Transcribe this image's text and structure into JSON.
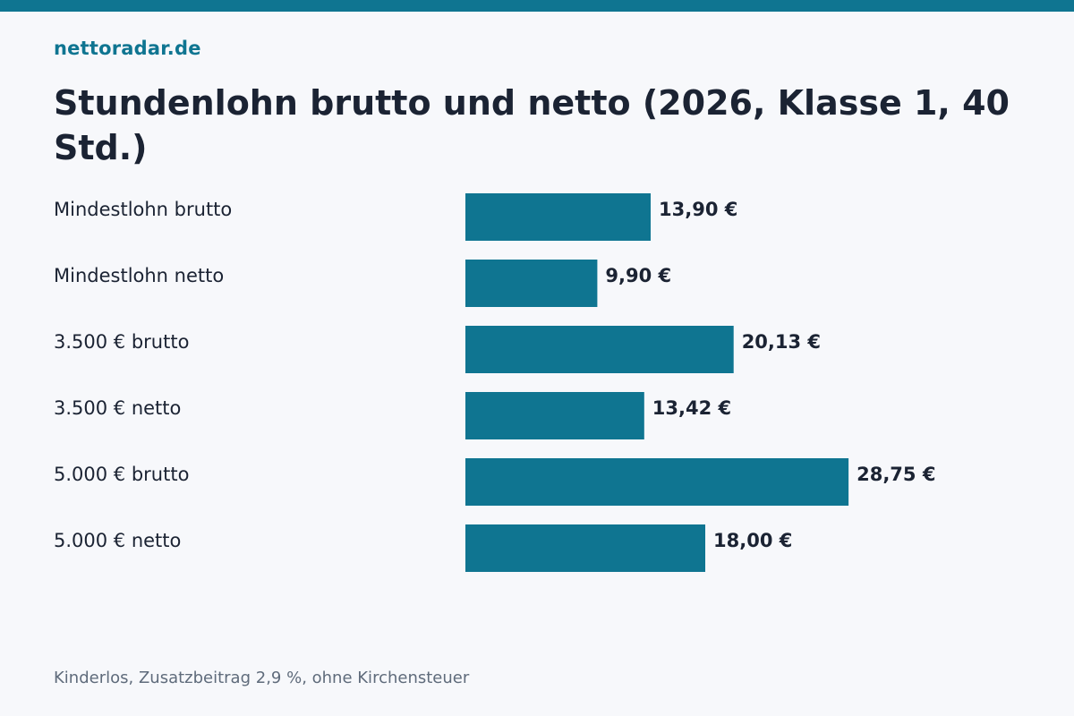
{
  "brand": "nettoradar.de",
  "colors": {
    "accent": "#0f7591",
    "background": "#f7f8fb",
    "text": "#1b2333",
    "muted": "#5f6b7b"
  },
  "chart_data": {
    "type": "bar",
    "orientation": "horizontal",
    "title": "Stundenlohn brutto und netto (2026, Klasse 1, 40 Std.)",
    "categories": [
      "Mindestlohn brutto",
      "Mindestlohn netto",
      "3.500 € brutto",
      "3.500 € netto",
      "5.000 € brutto",
      "5.000 € netto"
    ],
    "values": [
      13.9,
      9.9,
      20.13,
      13.42,
      28.75,
      18.0
    ],
    "value_labels": [
      "13,90 €",
      "9,90 €",
      "20,13 €",
      "13,42 €",
      "28,75 €",
      "18,00 €"
    ],
    "xlim": [
      0,
      45
    ],
    "grid": false,
    "legend": "none"
  },
  "footnote": "Kinderlos, Zusatzbeitrag 2,9 %, ohne Kirchensteuer"
}
